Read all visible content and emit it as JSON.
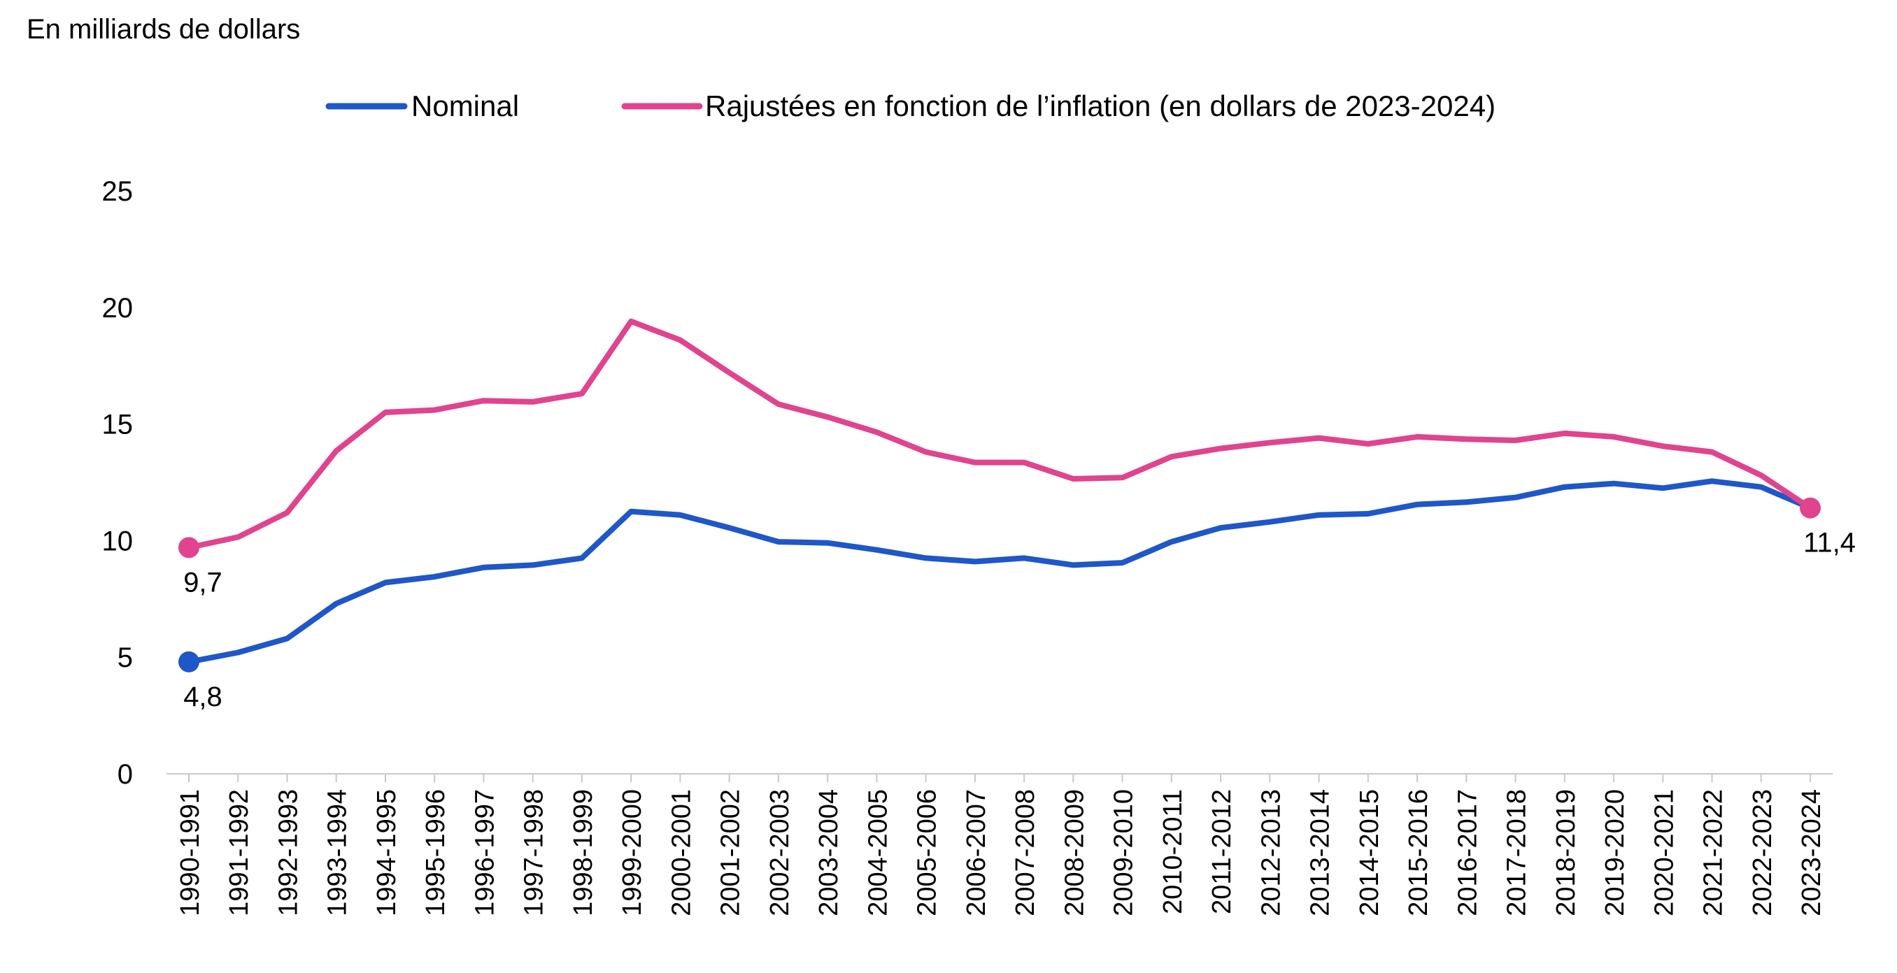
{
  "chart_data": {
    "type": "line",
    "ylabel": "En milliards de dollars",
    "ylim": [
      0,
      25
    ],
    "yticks": [
      0,
      5,
      10,
      15,
      20,
      25
    ],
    "grid": false,
    "legend_position": "top",
    "categories": [
      "1990-1991",
      "1991-1992",
      "1992-1993",
      "1993-1994",
      "1994-1995",
      "1995-1996",
      "1996-1997",
      "1997-1998",
      "1998-1999",
      "1999-2000",
      "2000-2001",
      "2001-2002",
      "2002-2003",
      "2003-2004",
      "2004-2005",
      "2005-2006",
      "2006-2007",
      "2007-2008",
      "2008-2009",
      "2009-2010",
      "2010-2011",
      "2011-2012",
      "2012-2013",
      "2013-2014",
      "2014-2015",
      "2015-2016",
      "2016-2017",
      "2017-2018",
      "2018-2019",
      "2019-2020",
      "2020-2021",
      "2021-2022",
      "2022-2023",
      "2023-2024"
    ],
    "series": [
      {
        "name": "Nominal",
        "color": "#1f57c8",
        "values": [
          4.8,
          5.2,
          5.8,
          7.3,
          8.2,
          8.45,
          8.85,
          8.95,
          9.25,
          11.25,
          11.1,
          10.55,
          9.95,
          9.9,
          9.6,
          9.25,
          9.1,
          9.25,
          8.95,
          9.05,
          9.95,
          10.55,
          10.8,
          11.1,
          11.15,
          11.55,
          11.65,
          11.85,
          12.3,
          12.45,
          12.25,
          12.55,
          12.3,
          11.4
        ],
        "annotations": [
          {
            "index": 0,
            "label": "4,8"
          }
        ]
      },
      {
        "name": "Rajustées en fonction de l’inflation (en dollars de 2023-2024)",
        "color": "#e0448e",
        "values": [
          9.7,
          10.15,
          11.2,
          13.85,
          15.5,
          15.6,
          16.0,
          15.95,
          16.3,
          19.4,
          18.6,
          17.2,
          15.85,
          15.3,
          14.65,
          13.8,
          13.35,
          13.35,
          12.65,
          12.7,
          13.6,
          13.95,
          14.2,
          14.4,
          14.15,
          14.45,
          14.35,
          14.3,
          14.6,
          14.45,
          14.05,
          13.8,
          12.8,
          11.4
        ],
        "annotations": [
          {
            "index": 0,
            "label": "9,7"
          },
          {
            "index": 33,
            "label": "11,4"
          }
        ]
      }
    ]
  }
}
